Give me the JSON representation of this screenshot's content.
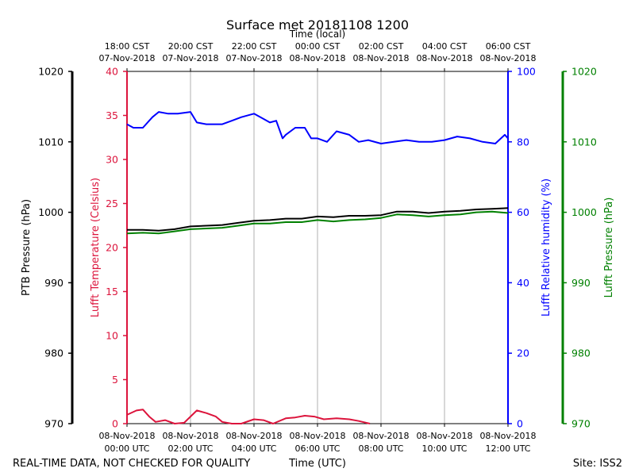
{
  "chart_data": {
    "type": "line",
    "title": "Surface met 20181108 1200",
    "top_xlabel": "Time (local)",
    "bottom_xlabel": "Time (UTC)",
    "footer_left": "REAL-TIME DATA, NOT CHECKED FOR QUALITY",
    "footer_right": "Site: ISS2",
    "x_range_hours": [
      0,
      12
    ],
    "x_ticks": [
      {
        "hour": 0,
        "utc": [
          "08-Nov-2018",
          "00:00 UTC"
        ],
        "local": [
          "18:00 CST",
          "07-Nov-2018"
        ]
      },
      {
        "hour": 2,
        "utc": [
          "08-Nov-2018",
          "02:00 UTC"
        ],
        "local": [
          "20:00 CST",
          "07-Nov-2018"
        ]
      },
      {
        "hour": 4,
        "utc": [
          "08-Nov-2018",
          "04:00 UTC"
        ],
        "local": [
          "22:00 CST",
          "07-Nov-2018"
        ]
      },
      {
        "hour": 6,
        "utc": [
          "08-Nov-2018",
          "06:00 UTC"
        ],
        "local": [
          "00:00 CST",
          "08-Nov-2018"
        ]
      },
      {
        "hour": 8,
        "utc": [
          "08-Nov-2018",
          "08:00 UTC"
        ],
        "local": [
          "02:00 CST",
          "08-Nov-2018"
        ]
      },
      {
        "hour": 10,
        "utc": [
          "08-Nov-2018",
          "10:00 UTC"
        ],
        "local": [
          "04:00 CST",
          "08-Nov-2018"
        ]
      },
      {
        "hour": 12,
        "utc": [
          "08-Nov-2018",
          "12:00 UTC"
        ],
        "local": [
          "06:00 CST",
          "08-Nov-2018"
        ]
      }
    ],
    "axes": {
      "ptb_pressure": {
        "label": "PTB Pressure (hPa)",
        "range": [
          970,
          1020
        ],
        "ticks": [
          970,
          980,
          990,
          1000,
          1010,
          1020
        ],
        "color": "#000000"
      },
      "temperature": {
        "label": "Lufft Temperature (Celsius)",
        "range": [
          0,
          40
        ],
        "ticks": [
          0,
          5,
          10,
          15,
          20,
          25,
          30,
          35,
          40
        ],
        "color": "#dc143c"
      },
      "humidity": {
        "label": "Lufft Relative humidity (%)",
        "range": [
          0,
          100
        ],
        "ticks": [
          0,
          20,
          40,
          60,
          80,
          100
        ],
        "color": "#0000ff"
      },
      "lufft_pressure": {
        "label": "Lufft Pressure (hPa)",
        "range": [
          970,
          1020
        ],
        "ticks": [
          970,
          980,
          990,
          1000,
          1010,
          1020
        ],
        "color": "#008000"
      }
    },
    "series": [
      {
        "name": "PTB Pressure",
        "axis": "ptb_pressure",
        "color": "#000000",
        "x": [
          0,
          0.5,
          1,
          1.5,
          2,
          2.5,
          3,
          3.5,
          4,
          4.5,
          5,
          5.5,
          6,
          6.5,
          7,
          7.5,
          8,
          8.5,
          9,
          9.5,
          10,
          10.5,
          11,
          11.5,
          12
        ],
        "y": [
          997.5,
          997.5,
          997.4,
          997.6,
          998,
          998.1,
          998.2,
          998.5,
          998.8,
          998.9,
          999.1,
          999.1,
          999.4,
          999.3,
          999.5,
          999.5,
          999.6,
          1000.1,
          1000.1,
          999.9,
          1000.1,
          1000.2,
          1000.4,
          1000.5,
          1000.6
        ]
      },
      {
        "name": "Lufft Pressure",
        "axis": "lufft_pressure",
        "color": "#008000",
        "x": [
          0,
          0.5,
          1,
          1.5,
          2,
          2.5,
          3,
          3.5,
          4,
          4.5,
          5,
          5.5,
          6,
          6.5,
          7,
          7.5,
          8,
          8.5,
          9,
          9.5,
          10,
          10.5,
          11,
          11.5,
          12
        ],
        "y": [
          997,
          997.1,
          997,
          997.3,
          997.6,
          997.7,
          997.8,
          998.1,
          998.4,
          998.4,
          998.6,
          998.6,
          998.9,
          998.7,
          998.9,
          999,
          999.2,
          999.7,
          999.6,
          999.4,
          999.6,
          999.7,
          1000,
          1000.1,
          999.9
        ]
      },
      {
        "name": "Lufft Relative humidity",
        "axis": "humidity",
        "color": "#0000ff",
        "x": [
          0,
          0.2,
          0.5,
          0.8,
          1,
          1.3,
          1.6,
          2,
          2.2,
          2.5,
          2.8,
          3,
          3.3,
          3.6,
          4,
          4.3,
          4.5,
          4.7,
          4.9,
          5,
          5.3,
          5.6,
          5.8,
          6,
          6.3,
          6.6,
          7,
          7.3,
          7.6,
          8,
          8.4,
          8.8,
          9.2,
          9.6,
          10,
          10.4,
          10.8,
          11.2,
          11.6,
          11.9,
          12
        ],
        "y": [
          85,
          84,
          84,
          87,
          88.5,
          88,
          88,
          88.5,
          85.5,
          85,
          85,
          85,
          86,
          87,
          88,
          86.5,
          85.5,
          86,
          81,
          82,
          84,
          84,
          81,
          81,
          80,
          83,
          82,
          80,
          80.5,
          79.5,
          80,
          80.5,
          80,
          80,
          80.5,
          81.5,
          81,
          80,
          79.5,
          82,
          81
        ]
      },
      {
        "name": "Lufft Temperature",
        "axis": "temperature",
        "color": "#dc143c",
        "x": [
          0,
          0.3,
          0.5,
          0.7,
          0.9,
          1.2,
          1.5,
          1.8,
          2,
          2.2,
          2.5,
          2.8,
          3,
          3.3,
          3.6,
          4,
          4.3,
          4.6,
          5,
          5.3,
          5.6,
          5.9,
          6.2,
          6.6,
          7,
          7.3,
          7.65
        ],
        "y": [
          1,
          1.5,
          1.6,
          0.8,
          0.2,
          0.4,
          0,
          0.1,
          0.8,
          1.5,
          1.2,
          0.8,
          0.2,
          0,
          0,
          0.5,
          0.4,
          0,
          0.6,
          0.7,
          0.9,
          0.8,
          0.5,
          0.6,
          0.5,
          0.3,
          0
        ]
      }
    ]
  }
}
